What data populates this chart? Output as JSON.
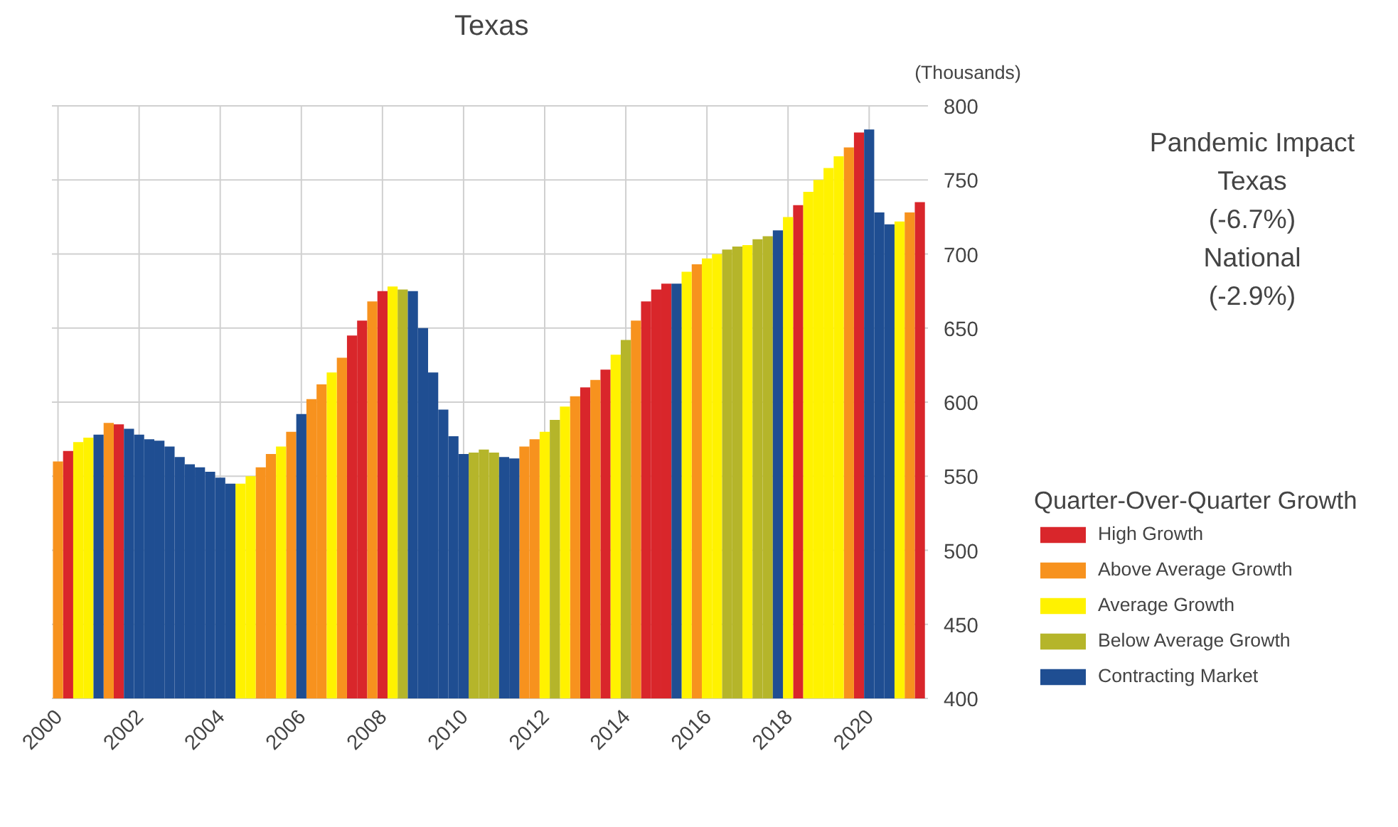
{
  "chart_data": {
    "type": "bar",
    "title": "Texas",
    "ylabel": "(Thousands)",
    "legend_title": "Quarter-Over-Quarter Growth",
    "annotations": [
      "Pandemic Impact",
      "Texas",
      "(-6.7%)",
      "National",
      "(-2.9%)"
    ],
    "x": [
      2000.0,
      2000.25,
      2000.5,
      2000.75,
      2001.0,
      2001.25,
      2001.5,
      2001.75,
      2002.0,
      2002.25,
      2002.5,
      2002.75,
      2003.0,
      2003.25,
      2003.5,
      2003.75,
      2004.0,
      2004.25,
      2004.5,
      2004.75,
      2005.0,
      2005.25,
      2005.5,
      2005.75,
      2006.0,
      2006.25,
      2006.5,
      2006.75,
      2007.0,
      2007.25,
      2007.5,
      2007.75,
      2008.0,
      2008.25,
      2008.5,
      2008.75,
      2009.0,
      2009.25,
      2009.5,
      2009.75,
      2010.0,
      2010.25,
      2010.5,
      2010.75,
      2011.0,
      2011.25,
      2011.5,
      2011.75,
      2012.0,
      2012.25,
      2012.5,
      2012.75,
      2013.0,
      2013.25,
      2013.5,
      2013.75,
      2014.0,
      2014.25,
      2014.5,
      2014.75,
      2015.0,
      2015.25,
      2015.5,
      2015.75,
      2016.0,
      2016.25,
      2016.5,
      2016.75,
      2017.0,
      2017.25,
      2017.5,
      2017.75,
      2018.0,
      2018.25,
      2018.5,
      2018.75,
      2019.0,
      2019.25,
      2019.5,
      2019.75,
      2020.0,
      2020.25,
      2020.5,
      2020.75,
      2021.0,
      2021.25
    ],
    "grid": true,
    "legend": "right",
    "xlim": [
      1999.85,
      2021.45
    ],
    "ylim": [
      400,
      800
    ],
    "xticks": [
      2000,
      2002,
      2004,
      2006,
      2008,
      2010,
      2012,
      2014,
      2016,
      2018,
      2020
    ],
    "yticks": [
      400,
      450,
      500,
      550,
      600,
      650,
      700,
      750,
      800
    ],
    "series": [
      {
        "name": "High Growth",
        "color": "#d9262b",
        "values": [
          null,
          567,
          null,
          null,
          null,
          null,
          585,
          null,
          null,
          null,
          null,
          null,
          null,
          null,
          null,
          null,
          null,
          null,
          null,
          null,
          null,
          null,
          null,
          null,
          null,
          null,
          null,
          null,
          null,
          645,
          655,
          null,
          675,
          null,
          null,
          null,
          null,
          null,
          null,
          null,
          null,
          null,
          null,
          null,
          null,
          null,
          null,
          null,
          null,
          null,
          null,
          null,
          610,
          null,
          622,
          null,
          null,
          null,
          668,
          676,
          680,
          null,
          null,
          null,
          null,
          null,
          null,
          null,
          null,
          null,
          null,
          null,
          null,
          733,
          null,
          null,
          null,
          null,
          null,
          782,
          null,
          null,
          null,
          null,
          null,
          735
        ]
      },
      {
        "name": "Above Average Growth",
        "color": "#f7921e",
        "values": [
          560,
          null,
          null,
          null,
          null,
          586,
          null,
          null,
          null,
          null,
          null,
          null,
          null,
          null,
          null,
          null,
          null,
          null,
          null,
          null,
          556,
          565,
          null,
          580,
          null,
          602,
          612,
          null,
          630,
          null,
          null,
          668,
          null,
          null,
          null,
          null,
          null,
          null,
          null,
          null,
          null,
          null,
          null,
          null,
          null,
          null,
          570,
          575,
          null,
          null,
          null,
          604,
          null,
          615,
          null,
          null,
          null,
          655,
          null,
          null,
          null,
          null,
          null,
          693,
          null,
          null,
          null,
          null,
          null,
          null,
          null,
          null,
          null,
          null,
          null,
          null,
          null,
          null,
          772,
          null,
          null,
          null,
          null,
          null,
          728,
          null
        ]
      },
      {
        "name": "Average Growth",
        "color": "#fff200",
        "values": [
          null,
          null,
          573,
          576,
          null,
          null,
          null,
          null,
          null,
          null,
          null,
          null,
          null,
          null,
          null,
          null,
          null,
          null,
          545,
          550,
          null,
          null,
          570,
          null,
          null,
          null,
          null,
          620,
          null,
          null,
          null,
          null,
          null,
          678,
          null,
          null,
          null,
          null,
          null,
          null,
          null,
          null,
          null,
          null,
          null,
          null,
          null,
          null,
          580,
          null,
          597,
          null,
          null,
          null,
          null,
          632,
          null,
          null,
          null,
          null,
          null,
          null,
          688,
          null,
          697,
          700,
          null,
          null,
          706,
          null,
          null,
          null,
          725,
          null,
          742,
          750,
          758,
          766,
          null,
          null,
          null,
          null,
          null,
          722,
          null,
          null
        ]
      },
      {
        "name": "Below Average Growth",
        "color": "#b5b52a",
        "values": [
          null,
          null,
          null,
          null,
          null,
          null,
          null,
          null,
          null,
          null,
          null,
          null,
          null,
          null,
          null,
          null,
          null,
          null,
          null,
          null,
          null,
          null,
          null,
          null,
          null,
          null,
          null,
          null,
          null,
          null,
          null,
          null,
          null,
          null,
          676,
          null,
          null,
          null,
          null,
          null,
          null,
          566,
          568,
          566,
          null,
          null,
          null,
          null,
          null,
          588,
          null,
          null,
          null,
          null,
          null,
          null,
          642,
          null,
          null,
          null,
          null,
          null,
          null,
          null,
          null,
          null,
          703,
          705,
          null,
          710,
          712,
          null,
          null,
          null,
          null,
          null,
          null,
          null,
          null,
          null,
          null,
          null,
          null,
          null,
          null,
          null
        ]
      },
      {
        "name": "Contracting Market",
        "color": "#1f4e92",
        "values": [
          null,
          null,
          null,
          null,
          578,
          null,
          null,
          582,
          578,
          575,
          574,
          570,
          563,
          558,
          556,
          553,
          549,
          545,
          null,
          null,
          null,
          null,
          null,
          null,
          592,
          null,
          null,
          null,
          null,
          null,
          null,
          null,
          null,
          null,
          null,
          675,
          650,
          620,
          595,
          577,
          565,
          null,
          null,
          null,
          563,
          562,
          null,
          null,
          null,
          null,
          null,
          null,
          null,
          null,
          null,
          null,
          null,
          null,
          null,
          null,
          null,
          680,
          null,
          null,
          null,
          null,
          null,
          null,
          null,
          null,
          null,
          716,
          null,
          null,
          null,
          null,
          null,
          null,
          null,
          null,
          784,
          728,
          720,
          null,
          null,
          null
        ]
      }
    ]
  }
}
